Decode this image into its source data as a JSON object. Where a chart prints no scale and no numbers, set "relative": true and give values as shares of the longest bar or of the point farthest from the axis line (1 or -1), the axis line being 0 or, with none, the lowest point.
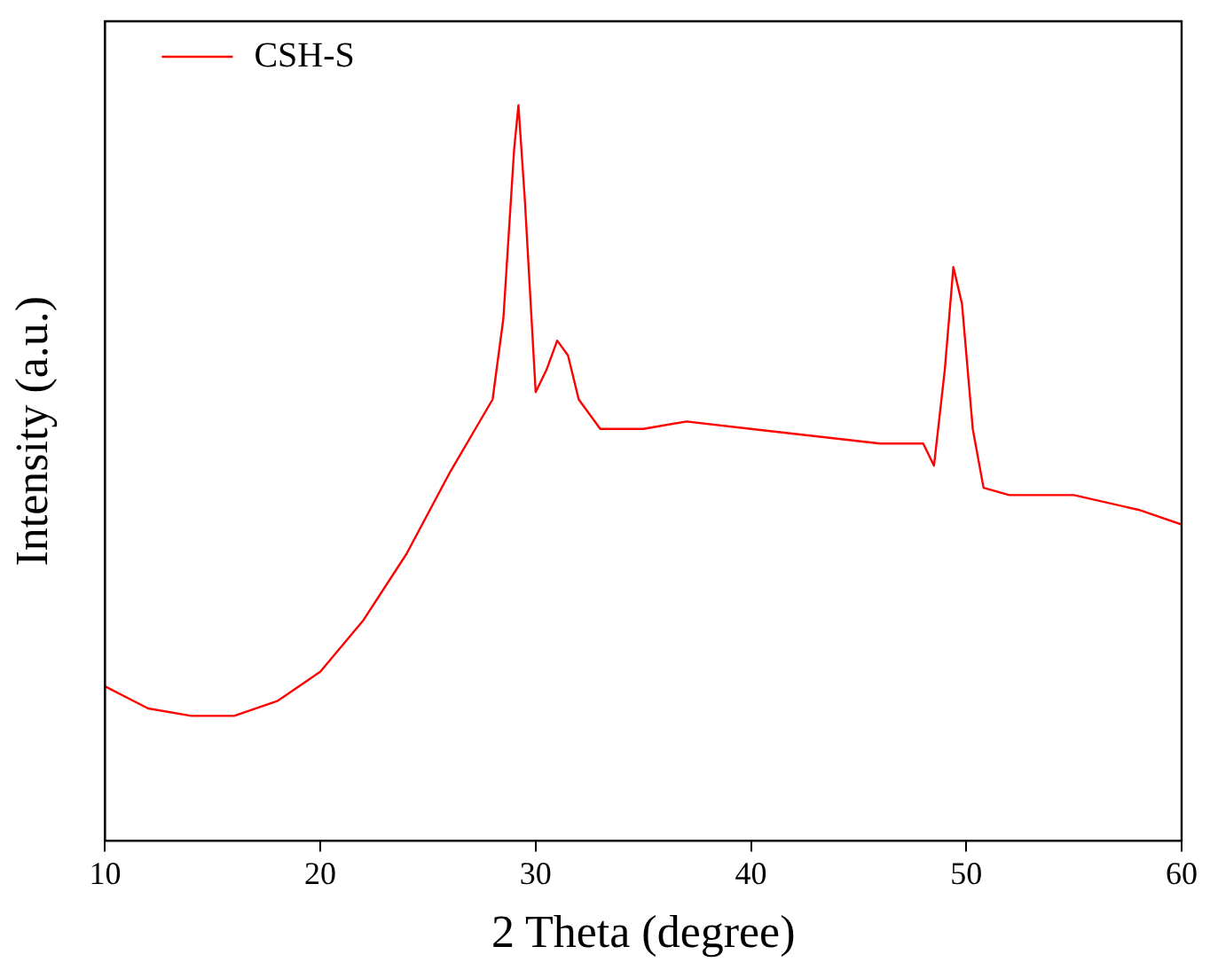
{
  "chart_data": {
    "type": "line",
    "xlabel": "2 Theta (degree)",
    "ylabel": "Intensity (a.u.)",
    "relative": true,
    "xlim": [
      10,
      60
    ],
    "xticks": [
      10,
      20,
      30,
      40,
      50,
      60
    ],
    "tick_labels": "x",
    "legend": "top left",
    "marker": "none",
    "grid": false,
    "series": [
      {
        "name": "CSH-S",
        "color": "#ff0000",
        "x": [
          10,
          12,
          14,
          16,
          18,
          20,
          22,
          24,
          26,
          27,
          28,
          28.5,
          29,
          29.2,
          29.5,
          30,
          30.5,
          31,
          31.5,
          32,
          33,
          35,
          37,
          40,
          43,
          46,
          48,
          48.5,
          49,
          49.4,
          49.8,
          50.3,
          50.8,
          52,
          55,
          58,
          60
        ],
        "values": [
          0.21,
          0.18,
          0.17,
          0.17,
          0.19,
          0.23,
          0.3,
          0.39,
          0.5,
          0.55,
          0.6,
          0.71,
          0.94,
          1.0,
          0.87,
          0.61,
          0.64,
          0.68,
          0.66,
          0.6,
          0.56,
          0.56,
          0.57,
          0.56,
          0.55,
          0.54,
          0.54,
          0.51,
          0.64,
          0.78,
          0.73,
          0.56,
          0.48,
          0.47,
          0.47,
          0.45,
          0.43
        ]
      }
    ]
  }
}
